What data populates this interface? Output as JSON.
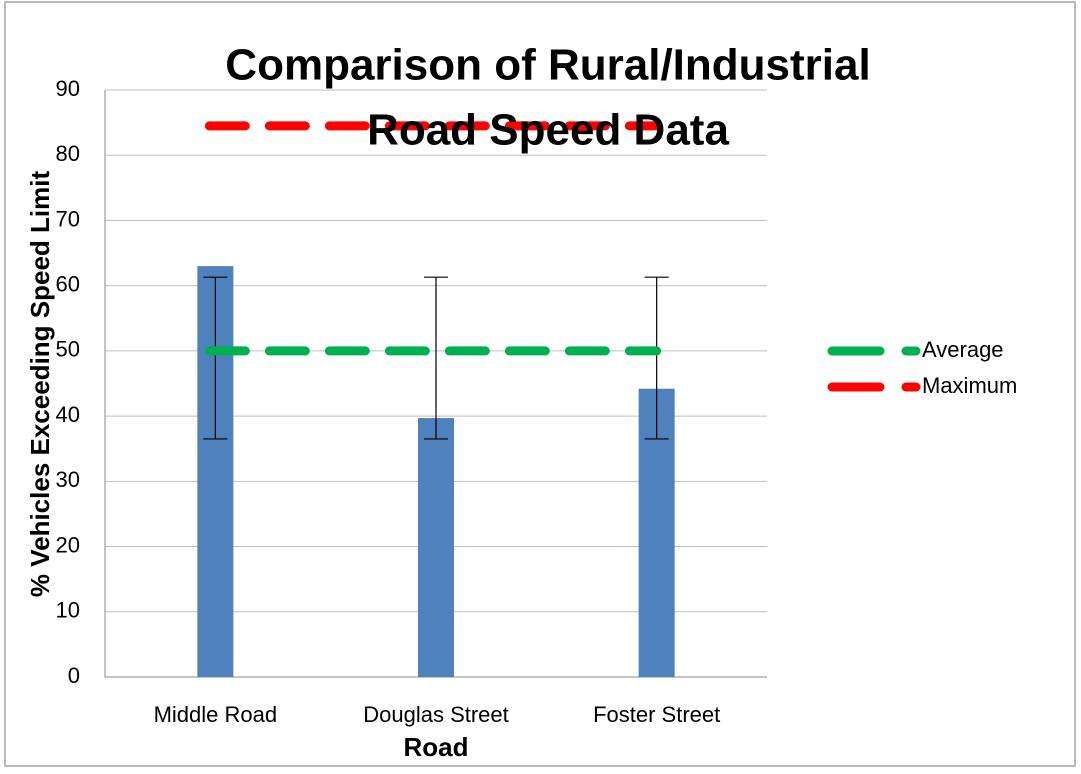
{
  "chart_data": {
    "type": "bar",
    "title": [
      "Comparison of Rural/Industrial",
      "Road Speed Data"
    ],
    "x_label": "Road",
    "y_label": "% Vehicles Exceeding Speed Limit",
    "categories": [
      "Middle Road",
      "Douglas Street",
      "Foster Street"
    ],
    "values": [
      63,
      39.7,
      44.2
    ],
    "color": "#4f81bd",
    "error_bars": {
      "low": [
        36.5,
        36.5,
        36.5
      ],
      "high": [
        61.3,
        61.3,
        61.3
      ]
    },
    "lines": [
      {
        "name": "Average",
        "color": "#00b050",
        "values": [
          50,
          50,
          50
        ]
      },
      {
        "name": "Maximum",
        "color": "#ff0000",
        "values": [
          84.5,
          84.5,
          84.5
        ]
      }
    ],
    "ylim": [
      0,
      90
    ],
    "yticks": [
      0,
      10,
      20,
      30,
      40,
      50,
      60,
      70,
      80,
      90
    ],
    "grid": true,
    "legend": "right"
  }
}
